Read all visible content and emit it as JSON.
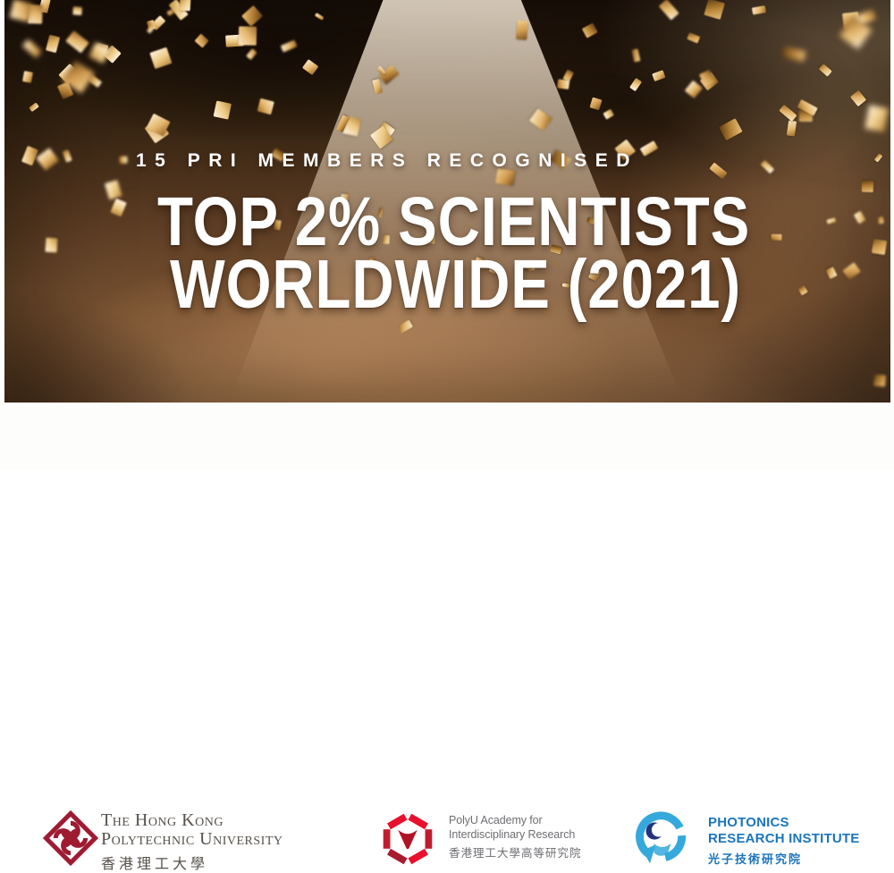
{
  "banner": {
    "kicker": "15 PRI MEMBERS RECOGNISED",
    "headline_line1": "TOP 2% SCIENTISTS",
    "headline_line2": "WORLDWIDE (2021)"
  },
  "logos": {
    "polyu": {
      "en_line1": "The Hong Kong",
      "en_line2": "Polytechnic University",
      "zh": "香港理工大學"
    },
    "pair": {
      "en_line1": "PolyU Academy for",
      "en_line2": "Interdisciplinary Research",
      "zh": "香港理工大學高等研究院"
    },
    "pri": {
      "en_line1": "PHOTONICS",
      "en_line2": "RESEARCH INSTITUTE",
      "zh": "光子技術研究院"
    }
  },
  "colors": {
    "polyu_red": "#9e1b32",
    "pair_red": "#e8112d",
    "pair_red_mid": "#c01c30",
    "pair_red_dark": "#a81c30",
    "pair_v_red": "#b01325",
    "pri_blue": "#1b75bc",
    "pri_light_blue": "#35a8dc",
    "pri_navy": "#21337e",
    "headline_white": "#ffffff",
    "confetti_palette": [
      [
        "#f9e9c8",
        "#e3b56b",
        "#9c6a2a"
      ],
      [
        "#f3cf8e",
        "#cf9a4e",
        "#7a5220"
      ],
      [
        "#e8c07a",
        "#b07c32",
        "#5d3c14"
      ],
      [
        "#fff3dc",
        "#edc985",
        "#b98a3e"
      ]
    ]
  }
}
